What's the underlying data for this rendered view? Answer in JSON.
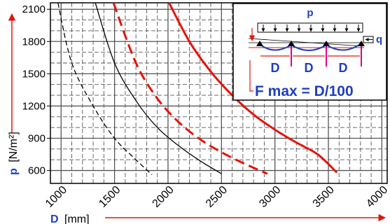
{
  "chart_data": {
    "type": "line",
    "title": "",
    "xlabel": {
      "symbol": "D",
      "unit": "[mm]"
    },
    "ylabel": {
      "symbol": "p",
      "unit": "[N/m²]"
    },
    "xlim": [
      900,
      4050
    ],
    "ylim": [
      480,
      2160
    ],
    "xticks": [
      1000,
      1500,
      2000,
      2500,
      3000,
      3500,
      4000
    ],
    "yticks": [
      600,
      900,
      1200,
      1500,
      1800,
      2100
    ],
    "grid": true,
    "series": [
      {
        "color": "#000000",
        "style": "dashed",
        "width": 1.3,
        "points": [
          [
            970,
            2160
          ],
          [
            1100,
            1600
          ],
          [
            1300,
            1200
          ],
          [
            1500,
            900
          ],
          [
            1700,
            700
          ],
          [
            1850,
            560
          ]
        ]
      },
      {
        "color": "#000000",
        "style": "solid",
        "width": 1.3,
        "points": [
          [
            1320,
            2160
          ],
          [
            1500,
            1600
          ],
          [
            1700,
            1250
          ],
          [
            1900,
            1000
          ],
          [
            2100,
            830
          ],
          [
            2300,
            690
          ],
          [
            2500,
            570
          ]
        ]
      },
      {
        "color": "#e3140d",
        "style": "dashed",
        "width": 3,
        "points": [
          [
            1490,
            2160
          ],
          [
            1700,
            1600
          ],
          [
            1900,
            1270
          ],
          [
            2100,
            1050
          ],
          [
            2300,
            890
          ],
          [
            2500,
            770
          ],
          [
            2700,
            670
          ],
          [
            2930,
            570
          ]
        ]
      },
      {
        "color": "#e3140d",
        "style": "solid",
        "width": 3,
        "points": [
          [
            2010,
            2160
          ],
          [
            2200,
            1800
          ],
          [
            2400,
            1520
          ],
          [
            2600,
            1300
          ],
          [
            2800,
            1120
          ],
          [
            3000,
            980
          ],
          [
            3200,
            860
          ],
          [
            3400,
            750
          ],
          [
            3580,
            580
          ]
        ]
      }
    ]
  },
  "inset": {
    "load_label": "p",
    "reaction_label": "q",
    "span_labels": [
      "D",
      "D",
      "D"
    ],
    "formula": "F max = D/100"
  },
  "colors": {
    "axis_label": "#1f3fbf",
    "arrow": "#e3140d",
    "inset_text": "#1f3fbf",
    "pink": "#e0008a"
  }
}
